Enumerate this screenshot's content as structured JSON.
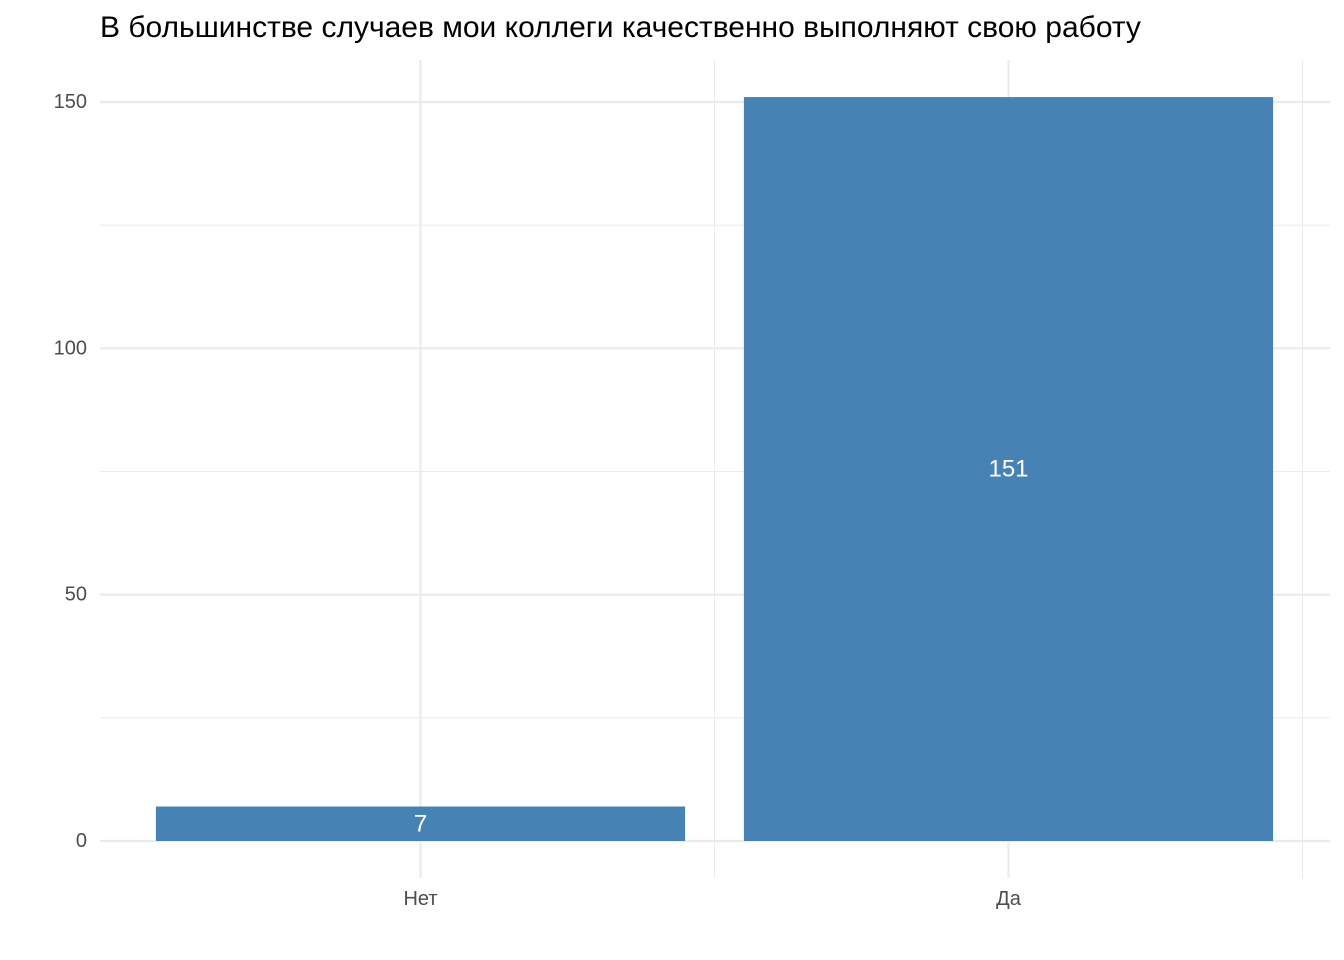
{
  "chart_data": {
    "type": "bar",
    "title": "В большинстве случаев мои коллеги качественно выполняют свою работу",
    "categories": [
      "Нет",
      "Да"
    ],
    "values": [
      7,
      151
    ],
    "data_labels": [
      "7",
      "151"
    ],
    "xlabel": "",
    "ylabel": "",
    "ylim": [
      0,
      151
    ],
    "y_ticks": [
      0,
      50,
      100,
      150
    ],
    "y_tick_labels": [
      "0",
      "50",
      "100",
      "150"
    ],
    "grid": true,
    "legend": "none",
    "bar_color": "#4682B4",
    "grid_color": "#EBEBEB"
  }
}
